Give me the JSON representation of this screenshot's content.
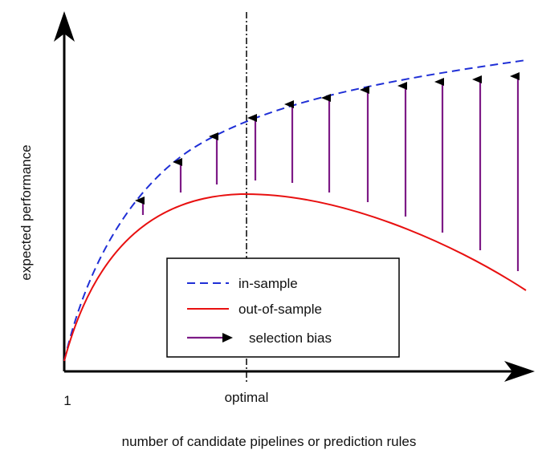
{
  "axes": {
    "y_label": "expected performance",
    "x_label": "number of candidate pipelines or prediction rules",
    "x_start_label": "1",
    "marker_label": "optimal"
  },
  "legend": [
    {
      "label": "in-sample"
    },
    {
      "label": "out-of-sample"
    },
    {
      "label": "selection bias"
    }
  ]
}
